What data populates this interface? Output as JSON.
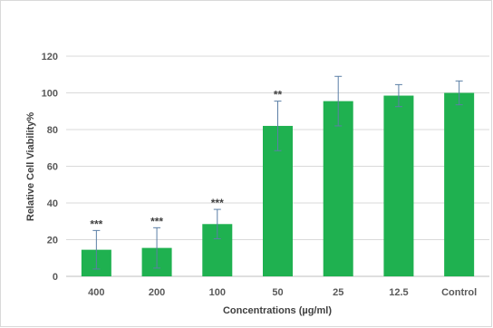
{
  "colors": {
    "bar": "#1fb150",
    "error": "#5b7fa6",
    "grid": "#d9d9d9",
    "axis": "#bfbfbf"
  },
  "chart_data": {
    "type": "bar",
    "title": "",
    "xlabel": "Concentrations  (µg/ml)",
    "ylabel": "Relative Cell Viability%",
    "ylim": [
      0,
      120
    ],
    "yticks": [
      0,
      20,
      40,
      60,
      80,
      100,
      120
    ],
    "grid": true,
    "categories": [
      "400",
      "200",
      "100",
      "50",
      "25",
      "12.5",
      "Control"
    ],
    "series": [
      {
        "values": [
          14.5,
          15.5,
          28.5,
          82,
          95.5,
          98.5,
          100
        ],
        "error": [
          10.5,
          11,
          8,
          13.5,
          13.5,
          6,
          6.5
        ],
        "significance": [
          "***",
          "***",
          "***",
          "**",
          "",
          "",
          ""
        ]
      }
    ]
  }
}
